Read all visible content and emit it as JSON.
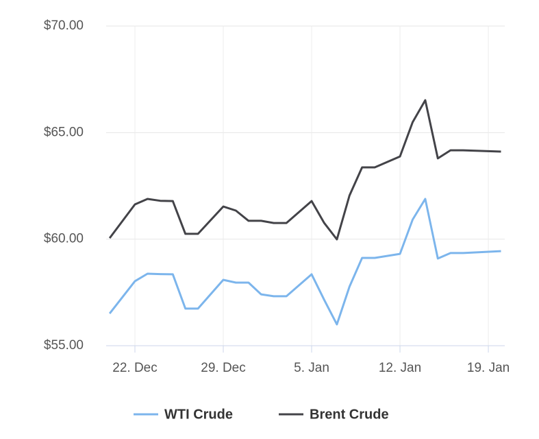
{
  "chart_data": {
    "type": "line",
    "x": [
      "20. Dec",
      "22. Dec",
      "23. Dec",
      "24. Dec",
      "25. Dec",
      "26. Dec",
      "27. Dec",
      "29. Dec",
      "30. Dec",
      "31. Dec",
      "1. Jan",
      "2. Jan",
      "3. Jan",
      "5. Jan",
      "6. Jan",
      "7. Jan",
      "8. Jan",
      "9. Jan",
      "10. Jan",
      "12. Jan",
      "13. Jan",
      "14. Jan",
      "15. Jan",
      "16. Jan",
      "17. Jan",
      "20. Jan"
    ],
    "series": [
      {
        "name": "WTI Crude",
        "color": "#7cb5ec",
        "values": [
          56.51,
          58.03,
          58.38,
          58.36,
          58.35,
          56.74,
          56.74,
          58.09,
          57.96,
          57.96,
          57.41,
          57.32,
          57.32,
          58.35,
          57.15,
          56.0,
          57.77,
          59.12,
          59.12,
          59.31,
          60.92,
          61.89,
          59.09,
          59.35,
          59.35,
          59.44
        ]
      },
      {
        "name": "Brent Crude",
        "color": "#434348",
        "values": [
          60.05,
          61.63,
          61.89,
          61.8,
          61.79,
          60.25,
          60.25,
          61.53,
          61.34,
          60.86,
          60.86,
          60.76,
          60.76,
          61.79,
          60.76,
          59.99,
          62.05,
          63.37,
          63.37,
          63.88,
          65.49,
          66.52,
          63.79,
          64.17,
          64.17,
          64.11
        ]
      }
    ],
    "xticks": [
      "22. Dec",
      "29. Dec",
      "5. Jan",
      "12. Jan",
      "19. Jan"
    ],
    "ylim": [
      55,
      70
    ],
    "yticks": [
      {
        "value": 55,
        "label": "$55.00"
      },
      {
        "value": 60,
        "label": "$60.00"
      },
      {
        "value": 65,
        "label": "$65.00"
      },
      {
        "value": 70,
        "label": "$70.00"
      }
    ],
    "grid": true
  }
}
